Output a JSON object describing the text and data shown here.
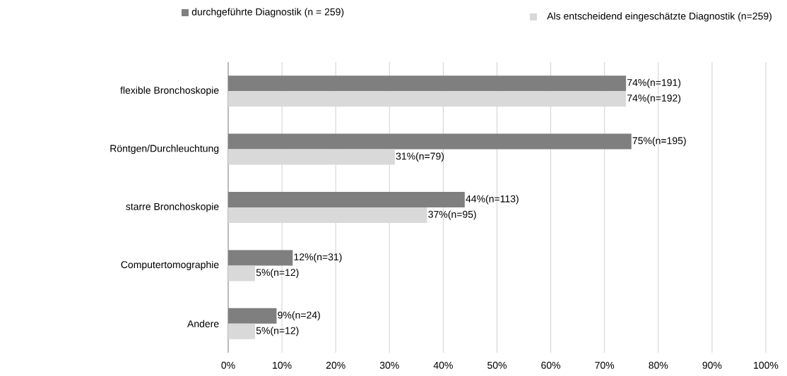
{
  "chart_data": {
    "type": "bar",
    "orientation": "horizontal",
    "categories": [
      "flexible Bronchoskopie",
      "Röntgen/Durchleuchtung",
      "starre Bronchoskopie",
      "Computertomographie",
      "Andere"
    ],
    "series": [
      {
        "name": "durchgeführte Diagnostik (n = 259)",
        "color": "#7f7f7f",
        "values": [
          74,
          75,
          44,
          12,
          9
        ],
        "value_labels": [
          "74%(n=191)",
          "75%(n=195)",
          "44%(n=113)",
          "12%(n=31)",
          "9%(n=24)"
        ]
      },
      {
        "name": "Als entscheidend eingeschätzte Diagnostik (n=259)",
        "color": "#d9d9d9",
        "values": [
          74,
          31,
          37,
          5,
          5
        ],
        "value_labels": [
          "74%(n=192)",
          "31%(n=79)",
          "37%(n=95)",
          "5%(n=12)",
          "5%(n=12)"
        ]
      }
    ],
    "xlim": [
      0,
      100
    ],
    "xticks": [
      {
        "value": 0,
        "label": "0%"
      },
      {
        "value": 10,
        "label": "10%"
      },
      {
        "value": 20,
        "label": "20%"
      },
      {
        "value": 30,
        "label": "30%"
      },
      {
        "value": 40,
        "label": "40%"
      },
      {
        "value": 50,
        "label": "50%"
      },
      {
        "value": 60,
        "label": "60%"
      },
      {
        "value": 70,
        "label": "70%"
      },
      {
        "value": 80,
        "label": "80%"
      },
      {
        "value": 90,
        "label": "90%"
      },
      {
        "value": 100,
        "label": "100%"
      }
    ],
    "grid": "x",
    "legend": "top"
  }
}
